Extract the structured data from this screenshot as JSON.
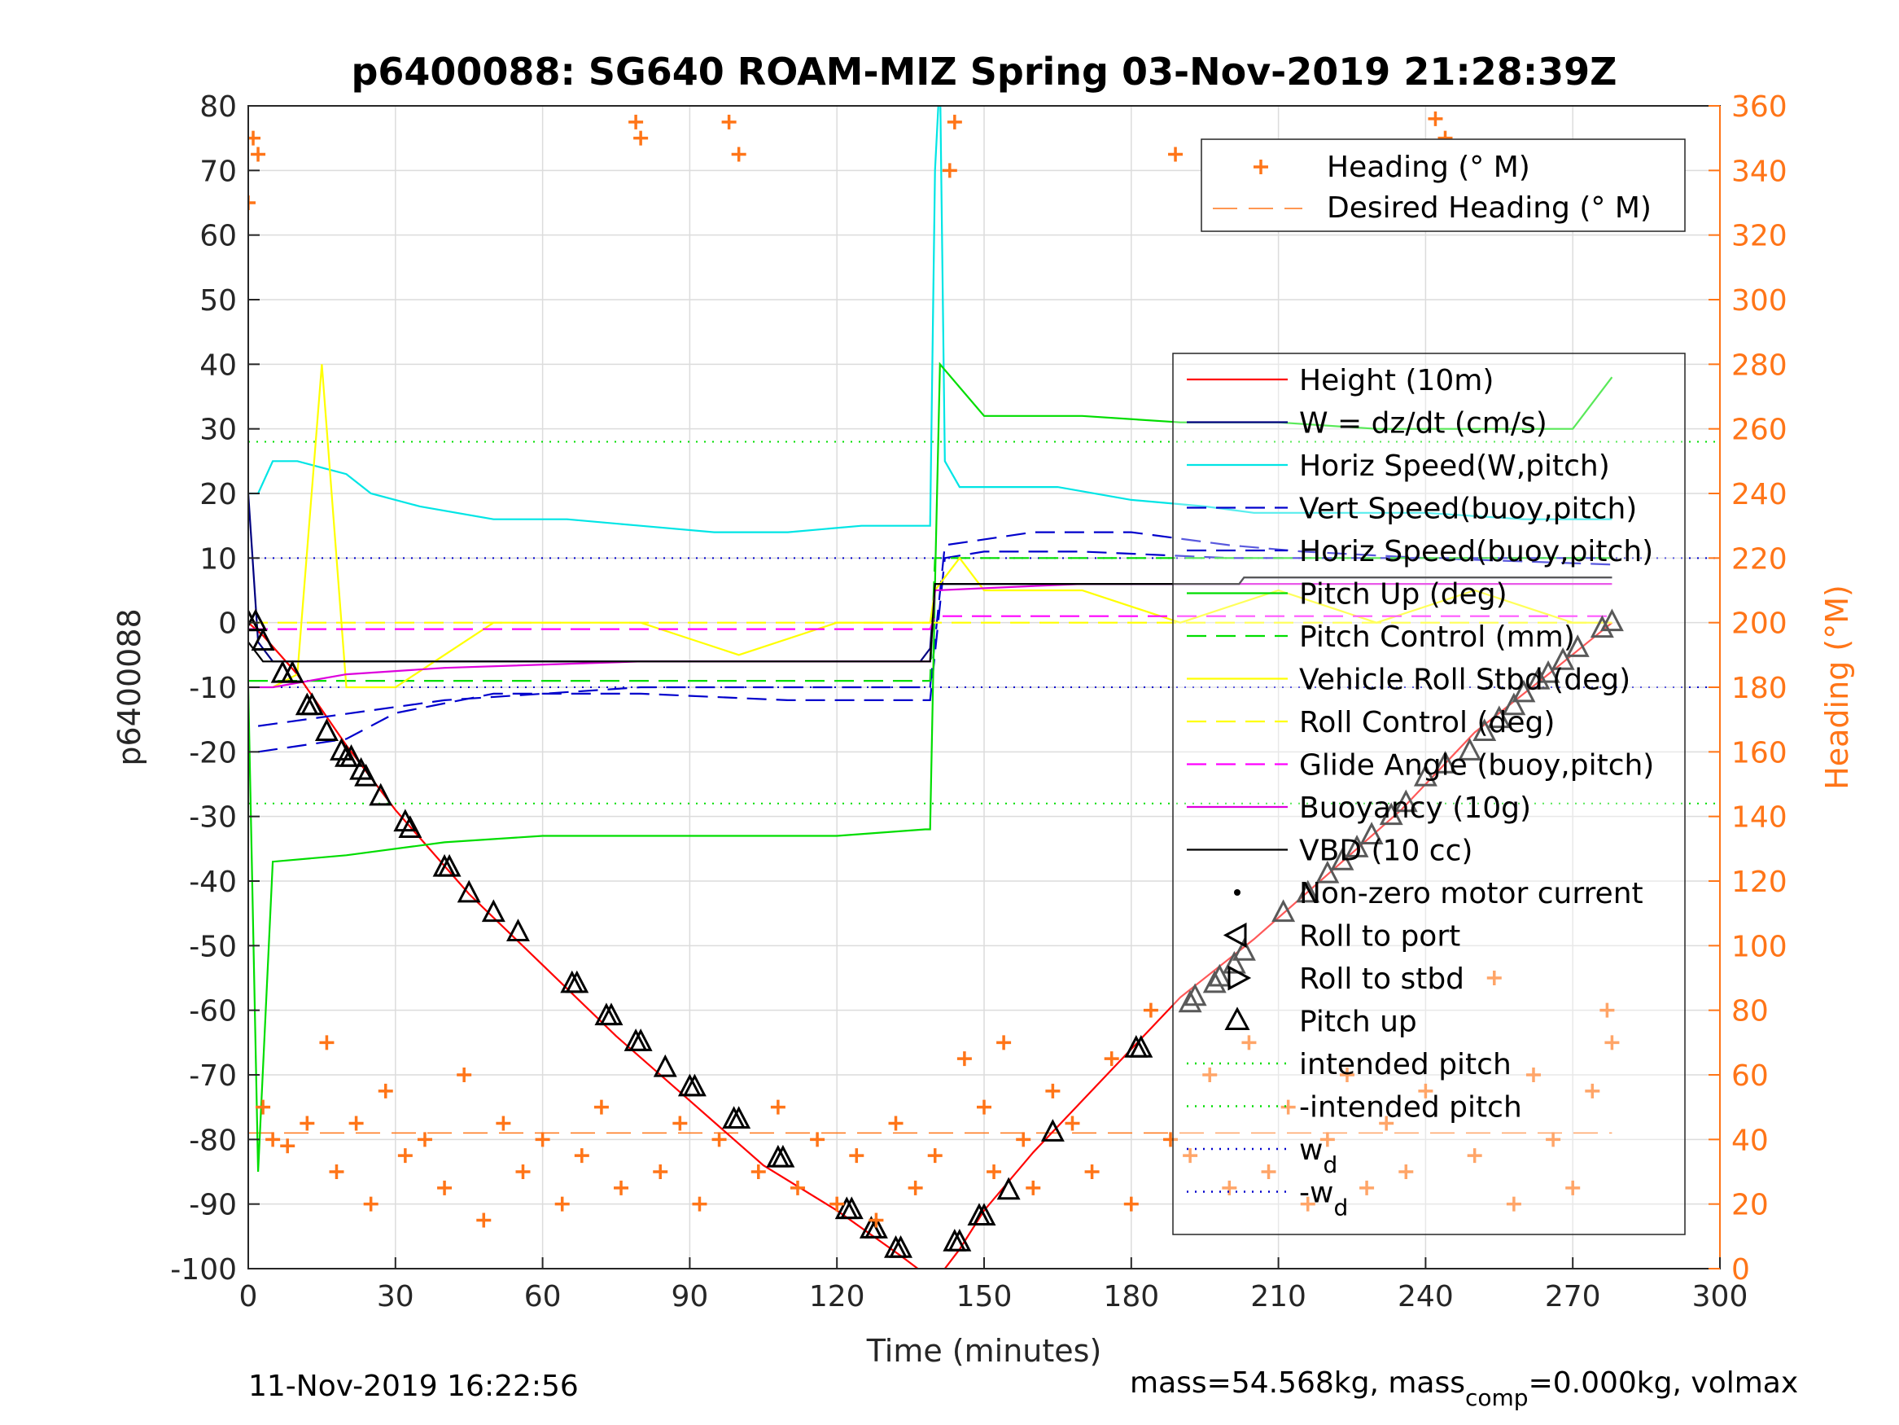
{
  "chart_data": {
    "type": "line",
    "title": "p6400088: SG640 ROAM-MIZ Spring 03-Nov-2019 21:28:39Z",
    "xlabel": "Time (minutes)",
    "ylabel_left": "p6400088",
    "ylabel_right": "Heading (°M)",
    "xlim": [
      0,
      300
    ],
    "ylim_left": [
      -100,
      80
    ],
    "ylim_right": [
      0,
      360
    ],
    "x_ticks": [
      "0",
      "30",
      "60",
      "90",
      "120",
      "150",
      "180",
      "210",
      "240",
      "270",
      "300"
    ],
    "y_left_ticks": [
      "80",
      "70",
      "60",
      "50",
      "40",
      "30",
      "20",
      "10",
      "0",
      "-10",
      "-20",
      "-30",
      "-40",
      "-50",
      "-60",
      "-70",
      "-80",
      "-90",
      "-100"
    ],
    "y_right_ticks": [
      "360",
      "340",
      "320",
      "300",
      "280",
      "260",
      "240",
      "220",
      "200",
      "180",
      "160",
      "140",
      "120",
      "100",
      "80",
      "60",
      "40",
      "20",
      "0"
    ],
    "grid": true,
    "footer_left": "11-Nov-2019 16:22:56",
    "footer_right": {
      "prefix": "mass=54.568kg, mass",
      "sub": "comp",
      "suffix": "=0.000kg, volmax"
    },
    "colors": {
      "height": "#ff0000",
      "w": "#000080",
      "horiz_speed_w": "#00e5e5",
      "vert_speed_buoy": "#0000cc",
      "horiz_speed_buoy": "#0000cc",
      "pitch": "#00dd00",
      "roll": "#ffff00",
      "glide": "#ff00ff",
      "buoyancy": "#dd00dd",
      "vbd": "#000000",
      "heading": "#ff7518",
      "right_axis": "#ff7518"
    },
    "legend_heading": {
      "placement": "top-right",
      "entries": [
        "Heading (° M)",
        "Desired Heading (° M)"
      ]
    },
    "legend_main": {
      "placement": "right",
      "entries": [
        {
          "label": "Height (10m)",
          "style": "line",
          "color": "#ff0000"
        },
        {
          "label": "W = dz/dt (cm/s)",
          "style": "line",
          "color": "#000080"
        },
        {
          "label": "Horiz Speed(W,pitch)",
          "style": "line",
          "color": "#00e5e5"
        },
        {
          "label": "Vert Speed(buoy,pitch)",
          "style": "dash",
          "color": "#0000cc"
        },
        {
          "label": "Horiz Speed(buoy,pitch)",
          "style": "dash",
          "color": "#0000cc"
        },
        {
          "label": "Pitch Up (deg)",
          "style": "line",
          "color": "#00dd00"
        },
        {
          "label": "Pitch Control (mm)",
          "style": "dash",
          "color": "#00dd00"
        },
        {
          "label": "Vehicle Roll Stbd (deg)",
          "style": "line",
          "color": "#ffff00"
        },
        {
          "label": "Roll Control (deg)",
          "style": "dash",
          "color": "#ffff00"
        },
        {
          "label": "Glide Angle (buoy,pitch)",
          "style": "dash",
          "color": "#ff00ff"
        },
        {
          "label": "Buoyancy (10g)",
          "style": "line",
          "color": "#dd00dd"
        },
        {
          "label": "VBD (10 cc)",
          "style": "line",
          "color": "#000000"
        },
        {
          "label": "Non-zero motor current",
          "style": "dot",
          "color": "#000000"
        },
        {
          "label": "Roll to port",
          "style": "tri-left",
          "color": "#000000"
        },
        {
          "label": "Roll to stbd",
          "style": "tri-right",
          "color": "#000000"
        },
        {
          "label": "Pitch up",
          "style": "tri-up",
          "color": "#000000"
        },
        {
          "label": "intended pitch",
          "style": "dotline",
          "color": "#00dd00"
        },
        {
          "label": "-intended pitch",
          "style": "dotline",
          "color": "#00dd00"
        },
        {
          "label": "w",
          "sub": "d",
          "style": "dotline",
          "color": "#0000cc"
        },
        {
          "label": "-w",
          "sub": "d",
          "style": "dotline",
          "color": "#0000cc"
        }
      ]
    },
    "reference_lines": {
      "intended_pitch": 28,
      "neg_intended_pitch": -28,
      "wd": 10,
      "neg_wd": -10,
      "desired_heading": 42
    },
    "series": [
      {
        "name": "Height (10m)",
        "axis": "left",
        "x": [
          0,
          3,
          10,
          20,
          30,
          45,
          60,
          75,
          90,
          105,
          120,
          133,
          140,
          145,
          150,
          160,
          175,
          190,
          205,
          220,
          235,
          250,
          265,
          278
        ],
        "y": [
          0,
          -2,
          -8,
          -19,
          -29,
          -42,
          -53,
          -64,
          -74,
          -84,
          -91,
          -98,
          -102,
          -97,
          -91,
          -82,
          -70,
          -58,
          -49,
          -39,
          -29,
          -17,
          -8,
          0
        ]
      },
      {
        "name": "W = dz/dt (cm/s)",
        "axis": "left",
        "x": [
          0,
          2,
          5,
          60,
          137,
          139,
          140,
          202,
          203,
          278
        ],
        "y": [
          20,
          -3,
          -6,
          -6,
          -6,
          -4,
          6,
          6,
          7,
          7
        ]
      },
      {
        "name": "Horiz Speed(W,pitch)",
        "axis": "left",
        "x": [
          0,
          2,
          5,
          10,
          15,
          20,
          25,
          35,
          50,
          65,
          80,
          95,
          110,
          125,
          139,
          140,
          141,
          142,
          145,
          155,
          165,
          180,
          195,
          205,
          210,
          220,
          240,
          260,
          278
        ],
        "y": [
          20,
          20,
          25,
          25,
          24,
          23,
          20,
          18,
          16,
          16,
          15,
          14,
          14,
          15,
          15,
          70,
          85,
          25,
          21,
          21,
          21,
          19,
          18,
          17,
          17,
          17,
          17,
          16,
          16
        ]
      },
      {
        "name": "Vert Speed(buoy,pitch)",
        "axis": "left",
        "x": [
          2,
          20,
          30,
          50,
          80,
          110,
          139,
          142,
          150,
          170,
          200,
          220,
          260,
          278
        ],
        "y": [
          -20,
          -18,
          -14,
          -11,
          -11,
          -12,
          -12,
          10,
          11,
          11,
          10,
          10,
          10,
          10
        ]
      },
      {
        "name": "Horiz Speed(buoy,pitch)",
        "axis": "left",
        "x": [
          2,
          40,
          80,
          120,
          139,
          142,
          160,
          180,
          200,
          215,
          240,
          278
        ],
        "y": [
          -16,
          -12,
          -10,
          -10,
          -10,
          12,
          14,
          14,
          12,
          11,
          10,
          9
        ]
      },
      {
        "name": "Pitch Up (deg)",
        "axis": "left",
        "x": [
          0,
          2,
          5,
          20,
          40,
          60,
          80,
          100,
          120,
          138,
          139,
          140,
          141,
          150,
          170,
          190,
          210,
          230,
          250,
          270,
          278
        ],
        "y": [
          -10,
          -85,
          -37,
          -36,
          -34,
          -33,
          -33,
          -33,
          -33,
          -32,
          -32,
          6,
          40,
          32,
          32,
          31,
          31,
          30,
          30,
          30,
          38
        ]
      },
      {
        "name": "Pitch Control (mm)",
        "axis": "left",
        "x": [
          0,
          139,
          140,
          278
        ],
        "y": [
          -9,
          -9,
          10,
          10
        ]
      },
      {
        "name": "Vehicle Roll Stbd (deg)",
        "axis": "left",
        "x": [
          5,
          10,
          15,
          20,
          30,
          40,
          50,
          60,
          80,
          100,
          120,
          139,
          140,
          145,
          150,
          170,
          190,
          210,
          230,
          250,
          270,
          278
        ],
        "y": [
          -10,
          -8,
          40,
          -10,
          -10,
          -5,
          0,
          0,
          0,
          -5,
          0,
          0,
          5,
          10,
          5,
          5,
          0,
          5,
          0,
          5,
          0,
          0
        ]
      },
      {
        "name": "Roll Control (deg)",
        "axis": "left",
        "x": [
          0,
          278
        ],
        "y": [
          0,
          0
        ]
      },
      {
        "name": "Glide Angle (buoy,pitch)",
        "axis": "left",
        "x": [
          0,
          139,
          140,
          278
        ],
        "y": [
          -1,
          -1,
          1,
          1
        ]
      },
      {
        "name": "Buoyancy (10g)",
        "axis": "left",
        "x": [
          0,
          5,
          20,
          40,
          80,
          139,
          140,
          170,
          210,
          278
        ],
        "y": [
          -10,
          -10,
          -8,
          -7,
          -6,
          -6,
          5,
          6,
          6,
          6
        ]
      },
      {
        "name": "VBD (10 cc)",
        "axis": "left",
        "x": [
          0,
          3,
          139,
          140,
          202,
          203,
          278
        ],
        "y": [
          -3,
          -6,
          -6,
          6,
          6,
          7,
          7
        ]
      },
      {
        "name": "Pitch up",
        "axis": "left",
        "style": "markers",
        "x": [
          0,
          1.5,
          3,
          7,
          9,
          12,
          13,
          16,
          19,
          20,
          21,
          23,
          24,
          27,
          32,
          33,
          40,
          41,
          45,
          50,
          55,
          66,
          67,
          73,
          74,
          79,
          80,
          85,
          90,
          91,
          99,
          100,
          108,
          109,
          122,
          123,
          127,
          128,
          132,
          133,
          144,
          145,
          149,
          150,
          155,
          164,
          181,
          182,
          192,
          193,
          197,
          198,
          201,
          203,
          211,
          216,
          220,
          223,
          226,
          229,
          233,
          236,
          240,
          244,
          249,
          252,
          255,
          258,
          260,
          263,
          265,
          268,
          271,
          276,
          278
        ],
        "y": [
          0,
          0,
          -3,
          -8,
          -8,
          -13,
          -13,
          -17,
          -20,
          -21,
          -21,
          -23,
          -24,
          -27,
          -31,
          -32,
          -38,
          -38,
          -42,
          -45,
          -48,
          -56,
          -56,
          -61,
          -61,
          -65,
          -65,
          -69,
          -72,
          -72,
          -77,
          -77,
          -83,
          -83,
          -91,
          -91,
          -94,
          -94,
          -97,
          -97,
          -96,
          -96,
          -92,
          -92,
          -88,
          -79,
          -66,
          -66,
          -59,
          -58,
          -56,
          -55,
          -53,
          -51,
          -45,
          -42,
          -39,
          -37,
          -35,
          -33,
          -30,
          -28,
          -24,
          -22,
          -20,
          -17,
          -15,
          -13,
          -11,
          -9,
          -8,
          -6,
          -4,
          -1,
          0
        ]
      },
      {
        "name": "Heading (° M)",
        "axis": "right",
        "style": "markers",
        "x": [
          0,
          1,
          2,
          3,
          5,
          8,
          12,
          16,
          18,
          22,
          25,
          28,
          32,
          36,
          40,
          44,
          48,
          52,
          56,
          60,
          64,
          68,
          72,
          76,
          79,
          80,
          84,
          88,
          92,
          96,
          98,
          100,
          104,
          108,
          112,
          116,
          120,
          124,
          128,
          132,
          136,
          140,
          143,
          144,
          146,
          150,
          152,
          154,
          158,
          160,
          164,
          168,
          172,
          176,
          180,
          184,
          188,
          189,
          192,
          196,
          200,
          204,
          208,
          212,
          216,
          220,
          224,
          228,
          232,
          236,
          240,
          242,
          244,
          246,
          250,
          254,
          258,
          262,
          266,
          270,
          274,
          277,
          278
        ],
        "y": [
          330,
          350,
          345,
          50,
          40,
          38,
          45,
          70,
          30,
          45,
          20,
          55,
          35,
          40,
          25,
          60,
          15,
          45,
          30,
          40,
          20,
          35,
          50,
          25,
          355,
          350,
          30,
          45,
          20,
          40,
          355,
          345,
          30,
          50,
          25,
          40,
          20,
          35,
          15,
          45,
          25,
          35,
          340,
          355,
          65,
          50,
          30,
          70,
          40,
          25,
          55,
          45,
          30,
          65,
          20,
          80,
          40,
          345,
          35,
          60,
          25,
          70,
          30,
          50,
          20,
          40,
          60,
          25,
          45,
          30,
          55,
          356,
          350,
          340,
          35,
          90,
          20,
          60,
          40,
          25,
          55,
          80,
          70
        ]
      }
    ]
  }
}
